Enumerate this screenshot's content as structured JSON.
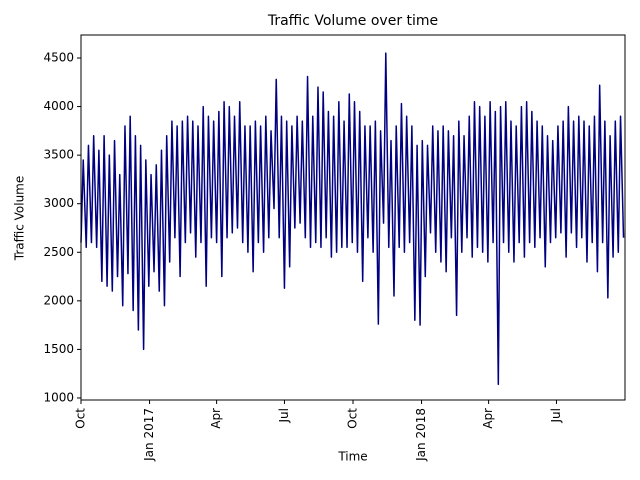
{
  "chart_data": {
    "type": "line",
    "title": "Traffic Volume over time",
    "xlabel": "Time",
    "ylabel": "Traffic Volume",
    "x": [
      0,
      3,
      7,
      10,
      14,
      17,
      21,
      24,
      28,
      31,
      35,
      38,
      42,
      45,
      49,
      52,
      56,
      59,
      63,
      66,
      70,
      73,
      77,
      80,
      84,
      87,
      91,
      94,
      98,
      101,
      105,
      108,
      112,
      115,
      119,
      122,
      126,
      129,
      133,
      136,
      140,
      143,
      147,
      150,
      154,
      157,
      161,
      164,
      168,
      171,
      175,
      178,
      182,
      185,
      189,
      192,
      196,
      199,
      203,
      206,
      210,
      213,
      217,
      220,
      224,
      227,
      231,
      234,
      238,
      241,
      245,
      248,
      252,
      255,
      259,
      262,
      266,
      269,
      273,
      276,
      280,
      283,
      287,
      290,
      294,
      297,
      301,
      304,
      308,
      311,
      315,
      318,
      322,
      325,
      329,
      332,
      336,
      339,
      343,
      346,
      350,
      353,
      357,
      360,
      364,
      367,
      371,
      374,
      378,
      381,
      385,
      388,
      392,
      395,
      399,
      402,
      406,
      409,
      413,
      416,
      420,
      423,
      427,
      430,
      434,
      437,
      441,
      444,
      448,
      451,
      455,
      458,
      462,
      465,
      469,
      472,
      476,
      479,
      483,
      486,
      490,
      493,
      497,
      500,
      504,
      507,
      511,
      514,
      518,
      521,
      525,
      528,
      532,
      535,
      539,
      542,
      546,
      549,
      553,
      556,
      560,
      563,
      567,
      570,
      574,
      577,
      581,
      584,
      588,
      591,
      595,
      598,
      602,
      605,
      609,
      612,
      616,
      619,
      623,
      626,
      630,
      633,
      637,
      640,
      644,
      647,
      651,
      654,
      658,
      661,
      665,
      668,
      672,
      675,
      679,
      682,
      686,
      689,
      693,
      696,
      700,
      703,
      707,
      710,
      714,
      717,
      721,
      724,
      728
    ],
    "series": [
      {
        "name": "Traffic Volume",
        "color": "#000080",
        "values": [
          2600,
          3450,
          2550,
          3600,
          2600,
          3700,
          2550,
          3550,
          2200,
          3700,
          2150,
          3500,
          2100,
          3650,
          2250,
          3300,
          1950,
          3800,
          2280,
          3900,
          1900,
          3700,
          1700,
          3600,
          1500,
          3450,
          2150,
          3300,
          2300,
          3400,
          2100,
          3550,
          1950,
          3700,
          2400,
          3850,
          2650,
          3800,
          2250,
          3850,
          2600,
          3900,
          2700,
          3850,
          2450,
          3800,
          2600,
          4000,
          2150,
          3900,
          2650,
          3850,
          2600,
          3950,
          2250,
          4050,
          2650,
          4000,
          2700,
          3900,
          2750,
          4050,
          2600,
          3800,
          2500,
          3800,
          2300,
          3850,
          2600,
          3800,
          2500,
          3900,
          2650,
          3750,
          2950,
          4280,
          2650,
          3900,
          2130,
          3850,
          2350,
          3800,
          2750,
          3900,
          2800,
          3850,
          2650,
          4310,
          2550,
          3900,
          2600,
          4200,
          2550,
          4150,
          2650,
          3950,
          2450,
          3900,
          2500,
          4050,
          2550,
          3850,
          2550,
          4130,
          2600,
          4050,
          2500,
          3950,
          2200,
          3800,
          2650,
          3800,
          2500,
          3850,
          1760,
          3750,
          2800,
          4550,
          2550,
          3650,
          2050,
          3800,
          2550,
          4030,
          2500,
          3900,
          2600,
          3800,
          1800,
          3600,
          1750,
          3650,
          2250,
          3600,
          2700,
          3800,
          2500,
          3750,
          2400,
          3800,
          2300,
          3750,
          2650,
          3700,
          1850,
          3850,
          2500,
          3700,
          2650,
          3900,
          2450,
          4050,
          2550,
          4000,
          2500,
          3900,
          2400,
          4050,
          2600,
          3950,
          1140,
          4000,
          2600,
          4050,
          2500,
          3850,
          2400,
          3800,
          2600,
          4000,
          2450,
          4050,
          2600,
          3950,
          2550,
          3850,
          2650,
          3800,
          2350,
          3700,
          2600,
          3650,
          2650,
          3800,
          2700,
          3850,
          2450,
          4000,
          2700,
          3850,
          2550,
          3900,
          2650,
          3850,
          2400,
          3800,
          2600,
          3900,
          2300,
          4220,
          2600,
          3850,
          2030,
          3700,
          2450,
          3850,
          2500,
          3900,
          2650
        ]
      }
    ],
    "xlim": [
      0,
      730
    ],
    "xticks": [
      {
        "value": 0,
        "label": "Oct"
      },
      {
        "value": 92,
        "label": "Jan 2017"
      },
      {
        "value": 182,
        "label": "Apr"
      },
      {
        "value": 273,
        "label": "Jul"
      },
      {
        "value": 365,
        "label": "Oct"
      },
      {
        "value": 457,
        "label": "Jan 2018"
      },
      {
        "value": 547,
        "label": "Apr"
      },
      {
        "value": 638,
        "label": "Jul"
      }
    ],
    "ylim": [
      979,
      4737
    ],
    "yticks": [
      1000,
      1500,
      2000,
      2500,
      3000,
      3500,
      4000,
      4500
    ]
  }
}
